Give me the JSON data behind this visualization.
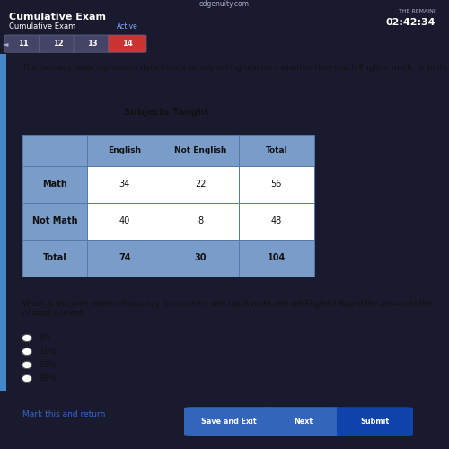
{
  "title": "Subjects Taught",
  "description": "The two-way table represents data from a survey asking teachers whether they teach English, math, or both.",
  "question": "Which is the joint relative frequency for teachers who teach math and not English? Round the answer to the nearest percent.",
  "col_headers": [
    "",
    "English",
    "Not English",
    "Total"
  ],
  "rows": [
    [
      "Math",
      "34",
      "22",
      "56"
    ],
    [
      "Not Math",
      "40",
      "8",
      "48"
    ],
    [
      "Total",
      "74",
      "30",
      "104"
    ]
  ],
  "choices": [
    "8%",
    "21%",
    "33%",
    "38%"
  ],
  "header_bg": "#7a9cc9",
  "row_label_bg": "#7a9cc9",
  "data_bg": "#ffffff",
  "border_color": "#5577aa",
  "page_bg": "#1a1a2e",
  "content_bg": "#eeeeee",
  "top_bar_bg": "#2a2a4a",
  "nav_active": "#cc3333",
  "nav_inactive": "#444466",
  "link_color": "#3366cc",
  "text_dark": "#111111",
  "text_white": "#ffffff",
  "site_label": "edgenuity.com",
  "time_label": "02:42:34",
  "time_remaining_label": "THE REMAINI",
  "exam_title": "Cumulative Exam",
  "tab_label": "Cumulative Exam",
  "tab_status": "Active",
  "nav_numbers": [
    "11",
    "12",
    "13",
    "14"
  ],
  "bottom_buttons": [
    "Save and Exit",
    "Next",
    "Submit"
  ],
  "mark_link": "Mark this and return"
}
